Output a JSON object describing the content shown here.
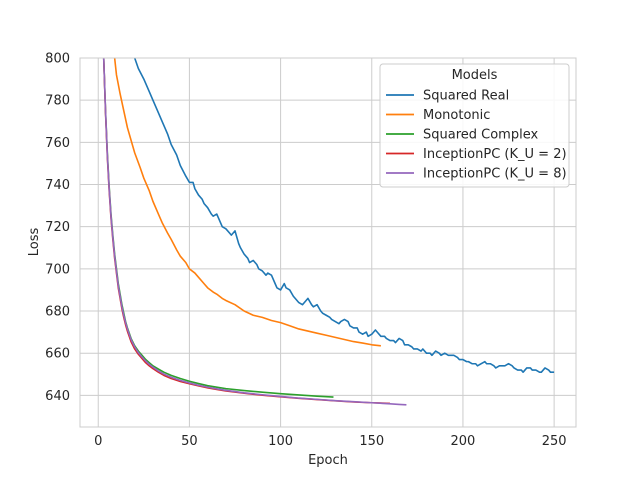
{
  "chart_data": {
    "type": "line",
    "title": "",
    "xlabel": "Epoch",
    "ylabel": "Loss",
    "xlim": [
      -10,
      262
    ],
    "ylim": [
      625,
      800
    ],
    "xticks": [
      0,
      50,
      100,
      150,
      200,
      250
    ],
    "yticks": [
      640,
      660,
      680,
      700,
      720,
      740,
      760,
      780,
      800
    ],
    "grid": true,
    "legend": {
      "title": "Models",
      "placement": "top-right"
    },
    "series": [
      {
        "name": "Squared Real",
        "color": "#1f77b4",
        "points": [
          [
            20,
            800
          ],
          [
            22,
            795
          ],
          [
            25,
            790
          ],
          [
            28,
            784
          ],
          [
            30,
            780
          ],
          [
            33,
            774
          ],
          [
            35,
            770
          ],
          [
            38,
            764
          ],
          [
            40,
            759
          ],
          [
            43,
            754
          ],
          [
            45,
            749
          ],
          [
            48,
            744
          ],
          [
            50,
            741
          ],
          [
            52,
            741
          ],
          [
            53,
            738
          ],
          [
            55,
            735
          ],
          [
            57,
            733
          ],
          [
            58,
            731
          ],
          [
            60,
            729
          ],
          [
            62,
            726
          ],
          [
            63,
            725
          ],
          [
            65,
            726
          ],
          [
            67,
            722
          ],
          [
            68,
            720
          ],
          [
            70,
            719
          ],
          [
            72,
            717
          ],
          [
            73,
            716
          ],
          [
            75,
            718
          ],
          [
            77,
            712
          ],
          [
            78,
            710
          ],
          [
            80,
            707
          ],
          [
            82,
            705
          ],
          [
            83,
            703
          ],
          [
            85,
            704
          ],
          [
            87,
            702
          ],
          [
            88,
            700
          ],
          [
            90,
            699
          ],
          [
            92,
            697
          ],
          [
            93,
            698
          ],
          [
            95,
            697
          ],
          [
            97,
            693
          ],
          [
            98,
            691
          ],
          [
            100,
            690
          ],
          [
            102,
            693
          ],
          [
            103,
            691
          ],
          [
            105,
            690
          ],
          [
            107,
            687
          ],
          [
            108,
            686
          ],
          [
            110,
            684
          ],
          [
            112,
            683
          ],
          [
            113,
            684
          ],
          [
            115,
            686
          ],
          [
            117,
            683
          ],
          [
            118,
            682
          ],
          [
            120,
            683
          ],
          [
            122,
            680
          ],
          [
            123,
            679
          ],
          [
            125,
            678
          ],
          [
            127,
            677
          ],
          [
            128,
            676
          ],
          [
            130,
            675
          ],
          [
            132,
            674
          ],
          [
            133,
            675
          ],
          [
            135,
            676
          ],
          [
            137,
            675
          ],
          [
            138,
            673
          ],
          [
            140,
            672
          ],
          [
            142,
            672
          ],
          [
            143,
            670
          ],
          [
            145,
            669
          ],
          [
            147,
            670
          ],
          [
            148,
            668
          ],
          [
            150,
            669
          ],
          [
            152,
            671
          ],
          [
            153,
            670
          ],
          [
            155,
            668
          ],
          [
            157,
            668
          ],
          [
            158,
            667
          ],
          [
            160,
            666
          ],
          [
            162,
            666
          ],
          [
            163,
            665
          ],
          [
            165,
            667
          ],
          [
            167,
            666
          ],
          [
            168,
            664
          ],
          [
            170,
            664
          ],
          [
            172,
            663
          ],
          [
            173,
            662
          ],
          [
            175,
            662
          ],
          [
            177,
            661
          ],
          [
            178,
            662
          ],
          [
            180,
            660
          ],
          [
            182,
            660
          ],
          [
            183,
            659
          ],
          [
            185,
            661
          ],
          [
            187,
            660
          ],
          [
            188,
            659
          ],
          [
            190,
            660
          ],
          [
            192,
            659
          ],
          [
            193,
            659
          ],
          [
            195,
            659
          ],
          [
            197,
            658
          ],
          [
            198,
            657
          ],
          [
            200,
            657
          ],
          [
            202,
            656
          ],
          [
            203,
            656
          ],
          [
            205,
            655
          ],
          [
            207,
            655
          ],
          [
            208,
            654
          ],
          [
            210,
            655
          ],
          [
            212,
            656
          ],
          [
            213,
            655
          ],
          [
            215,
            655
          ],
          [
            217,
            654
          ],
          [
            218,
            653
          ],
          [
            220,
            654
          ],
          [
            222,
            654
          ],
          [
            223,
            654
          ],
          [
            225,
            655
          ],
          [
            227,
            654
          ],
          [
            228,
            653
          ],
          [
            230,
            652
          ],
          [
            232,
            652
          ],
          [
            233,
            651
          ],
          [
            235,
            653
          ],
          [
            237,
            653
          ],
          [
            238,
            652
          ],
          [
            240,
            652
          ],
          [
            242,
            651
          ],
          [
            243,
            651
          ],
          [
            245,
            653
          ],
          [
            247,
            652
          ],
          [
            248,
            651
          ],
          [
            250,
            651
          ]
        ]
      },
      {
        "name": "Monotonic",
        "color": "#ff7f0e",
        "points": [
          [
            9,
            800
          ],
          [
            10,
            792
          ],
          [
            12,
            783
          ],
          [
            14,
            775
          ],
          [
            16,
            767
          ],
          [
            18,
            761
          ],
          [
            20,
            755
          ],
          [
            23,
            748
          ],
          [
            25,
            743
          ],
          [
            28,
            737
          ],
          [
            30,
            732
          ],
          [
            33,
            726
          ],
          [
            35,
            722
          ],
          [
            38,
            717
          ],
          [
            40,
            714
          ],
          [
            43,
            709
          ],
          [
            45,
            706
          ],
          [
            48,
            703
          ],
          [
            50,
            700
          ],
          [
            53,
            698
          ],
          [
            55,
            696
          ],
          [
            58,
            693
          ],
          [
            60,
            691
          ],
          [
            63,
            689
          ],
          [
            65,
            688
          ],
          [
            68,
            686
          ],
          [
            70,
            685
          ],
          [
            75,
            683
          ],
          [
            80,
            680
          ],
          [
            85,
            678
          ],
          [
            90,
            677
          ],
          [
            95,
            675.5
          ],
          [
            100,
            674.5
          ],
          [
            105,
            673
          ],
          [
            110,
            671.5
          ],
          [
            115,
            670.5
          ],
          [
            120,
            669.5
          ],
          [
            125,
            668.5
          ],
          [
            130,
            667.5
          ],
          [
            135,
            666.5
          ],
          [
            140,
            665.5
          ],
          [
            145,
            664.8
          ],
          [
            150,
            664
          ],
          [
            155,
            663.5
          ]
        ]
      },
      {
        "name": "Squared Complex",
        "color": "#2ca02c",
        "points": [
          [
            3,
            800
          ],
          [
            4,
            775
          ],
          [
            5,
            755
          ],
          [
            6,
            739
          ],
          [
            7,
            726
          ],
          [
            8,
            716
          ],
          [
            9,
            707
          ],
          [
            10,
            700
          ],
          [
            11,
            693
          ],
          [
            12,
            688
          ],
          [
            13,
            683
          ],
          [
            14,
            679
          ],
          [
            15,
            675
          ],
          [
            16,
            672
          ],
          [
            17,
            669.5
          ],
          [
            18,
            667
          ],
          [
            20,
            663.5
          ],
          [
            22,
            661
          ],
          [
            24,
            659
          ],
          [
            26,
            657
          ],
          [
            28,
            655.5
          ],
          [
            30,
            654
          ],
          [
            33,
            652.5
          ],
          [
            36,
            651
          ],
          [
            40,
            649.5
          ],
          [
            45,
            648
          ],
          [
            50,
            646.7
          ],
          [
            55,
            645.6
          ],
          [
            60,
            644.6
          ],
          [
            65,
            643.9
          ],
          [
            70,
            643.2
          ],
          [
            80,
            642.3
          ],
          [
            90,
            641.5
          ],
          [
            100,
            640.8
          ],
          [
            110,
            640.2
          ],
          [
            120,
            639.6
          ],
          [
            129,
            639.2
          ]
        ]
      },
      {
        "name": "InceptionPC (K_U = 2)",
        "color": "#d62728",
        "points": [
          [
            3,
            800
          ],
          [
            4,
            774
          ],
          [
            5,
            753
          ],
          [
            6,
            737
          ],
          [
            7,
            724
          ],
          [
            8,
            714
          ],
          [
            9,
            705
          ],
          [
            10,
            698
          ],
          [
            11,
            691
          ],
          [
            12,
            686
          ],
          [
            13,
            681
          ],
          [
            14,
            677
          ],
          [
            15,
            673.5
          ],
          [
            16,
            670.5
          ],
          [
            17,
            668
          ],
          [
            18,
            665.5
          ],
          [
            20,
            662
          ],
          [
            22,
            659.5
          ],
          [
            24,
            657.5
          ],
          [
            26,
            655.5
          ],
          [
            28,
            654
          ],
          [
            30,
            652.7
          ],
          [
            33,
            651
          ],
          [
            36,
            649.5
          ],
          [
            40,
            648
          ],
          [
            45,
            646.6
          ],
          [
            50,
            645.5
          ],
          [
            55,
            644.5
          ],
          [
            60,
            643.6
          ],
          [
            65,
            642.8
          ],
          [
            70,
            642.1
          ],
          [
            80,
            641
          ],
          [
            90,
            640.1
          ],
          [
            100,
            639.3
          ],
          [
            110,
            638.6
          ],
          [
            120,
            638
          ],
          [
            130,
            637.4
          ],
          [
            140,
            636.9
          ],
          [
            150,
            636.5
          ],
          [
            160,
            636.2
          ]
        ]
      },
      {
        "name": "InceptionPC (K_U = 8)",
        "color": "#9467bd",
        "points": [
          [
            3,
            800
          ],
          [
            4,
            775
          ],
          [
            5,
            754
          ],
          [
            6,
            738
          ],
          [
            7,
            725
          ],
          [
            8,
            715
          ],
          [
            9,
            706
          ],
          [
            10,
            699
          ],
          [
            11,
            692
          ],
          [
            12,
            687
          ],
          [
            13,
            682
          ],
          [
            14,
            678
          ],
          [
            15,
            674.5
          ],
          [
            16,
            671.5
          ],
          [
            17,
            669
          ],
          [
            18,
            666.5
          ],
          [
            20,
            663
          ],
          [
            22,
            660.3
          ],
          [
            24,
            658.2
          ],
          [
            26,
            656.3
          ],
          [
            28,
            654.7
          ],
          [
            30,
            653.4
          ],
          [
            33,
            651.6
          ],
          [
            36,
            650.1
          ],
          [
            40,
            648.6
          ],
          [
            45,
            647.1
          ],
          [
            50,
            645.9
          ],
          [
            55,
            644.8
          ],
          [
            60,
            643.9
          ],
          [
            65,
            643.1
          ],
          [
            70,
            642.4
          ],
          [
            80,
            641.2
          ],
          [
            90,
            640.3
          ],
          [
            100,
            639.5
          ],
          [
            110,
            638.7
          ],
          [
            120,
            638.1
          ],
          [
            130,
            637.5
          ],
          [
            140,
            637
          ],
          [
            150,
            636.5
          ],
          [
            160,
            636
          ],
          [
            165,
            635.7
          ],
          [
            169,
            635.5
          ]
        ]
      }
    ]
  }
}
